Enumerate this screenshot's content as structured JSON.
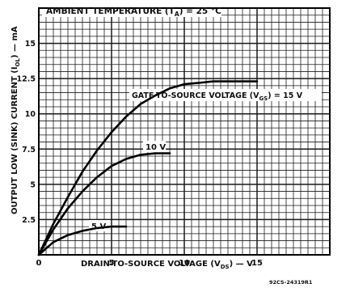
{
  "chart_data": {
    "type": "line",
    "title": "AMBIENT TEMPERATURE (T_A) = 25 °C",
    "title_parts": {
      "before": "AMBIENT TEMPERATURE (T",
      "sub": "A",
      "after": ") = 25 °C"
    },
    "xlabel": "DRAIN-TO-SOURCE VOLTAGE (V_DS) — V",
    "xlabel_parts": {
      "before": "DRAIN-TO-SOURCE VOLTAGE (V",
      "sub": "DS",
      "after": ") — V"
    },
    "ylabel": "OUTPUT LOW (SINK) CURRENT (I_OL) — mA",
    "ylabel_parts": {
      "before": "OUTPUT LOW (SINK) CURRENT (I",
      "sub": "OL",
      "after": ") — mA"
    },
    "xlim": [
      0,
      20
    ],
    "ylim": [
      0,
      17.5
    ],
    "x_ticks": [
      0,
      5,
      10,
      15
    ],
    "y_ticks": [
      2.5,
      5,
      7.5,
      10,
      12.5,
      15
    ],
    "x_tick_labels": [
      "0",
      "5",
      "10",
      "15"
    ],
    "y_tick_labels": [
      "2.5",
      "5",
      "7.5",
      "10",
      "12.5",
      "15"
    ],
    "grid": true,
    "series": [
      {
        "name": "GATE-TO-SOURCE VOLTAGE (V_GS) = 15 V",
        "label_text": "GATE-TO-SOURCE VOLTAGE (V",
        "label_sub": "GS",
        "label_after": ") = 15 V",
        "x": [
          0,
          1,
          2,
          3,
          4,
          5,
          6,
          7,
          8,
          9,
          10,
          11,
          12,
          13,
          14,
          15
        ],
        "y": [
          0,
          2.2,
          4.1,
          5.9,
          7.4,
          8.7,
          9.8,
          10.7,
          11.3,
          11.8,
          12.1,
          12.2,
          12.3,
          12.3,
          12.3,
          12.3
        ]
      },
      {
        "name": "10 V",
        "label_text": "10 V",
        "label_sub": "",
        "label_after": "",
        "x": [
          0,
          1,
          2,
          3,
          4,
          5,
          6,
          7,
          8,
          9
        ],
        "y": [
          0,
          1.8,
          3.3,
          4.5,
          5.5,
          6.3,
          6.8,
          7.1,
          7.2,
          7.2
        ]
      },
      {
        "name": "5 V",
        "label_text": "5 V",
        "label_sub": "",
        "label_after": "",
        "x": [
          0,
          1,
          2,
          3,
          4,
          5,
          6
        ],
        "y": [
          0,
          0.9,
          1.4,
          1.7,
          1.9,
          2.0,
          2.0
        ]
      }
    ],
    "annotation": "92CS-24319R1"
  }
}
